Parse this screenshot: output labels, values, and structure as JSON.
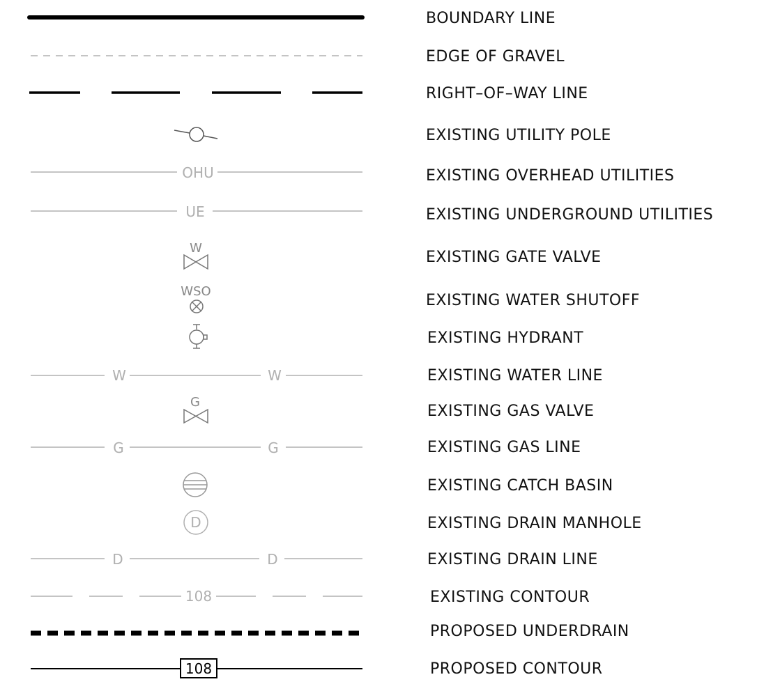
{
  "legend": {
    "labels": {
      "boundary_line": "BOUNDARY LINE",
      "edge_of_gravel": "EDGE OF GRAVEL",
      "right_of_way_line": "RIGHT–OF–WAY LINE",
      "existing_utility_pole": "EXISTING UTILITY POLE",
      "existing_overhead_utilities": "EXISTING OVERHEAD UTILITIES",
      "existing_underground_utilities": "EXISTING UNDERGROUND UTILITIES",
      "existing_gate_valve": "EXISTING GATE VALVE",
      "existing_water_shutoff": "EXISTING WATER SHUTOFF",
      "existing_hydrant": "EXISTING HYDRANT",
      "existing_water_line": "EXISTING WATER LINE",
      "existing_gas_valve": "EXISTING GAS VALVE",
      "existing_gas_line": "EXISTING GAS LINE",
      "existing_catch_basin": "EXISTING CATCH BASIN",
      "existing_drain_manhole": "EXISTING DRAIN MANHOLE",
      "existing_drain_line": "EXISTING DRAIN LINE",
      "existing_contour": "EXISTING CONTOUR",
      "proposed_underdrain": "PROPOSED UNDERDRAIN",
      "proposed_contour": "PROPOSED CONTOUR"
    },
    "symbol_text": {
      "ohu": "OHU",
      "ue": "UE",
      "gate_valve_letter": "W",
      "water_shutoff_letters": "WSO",
      "water_line_letter": "W",
      "gas_valve_letter": "G",
      "gas_line_letter": "G",
      "drain_manhole_letter": "D",
      "drain_line_letter": "D",
      "existing_contour_value": "108",
      "proposed_contour_value": "108"
    },
    "colors": {
      "black": "#000000",
      "existing_gray": "#b0b0b0",
      "label": "#111111"
    },
    "icons": {
      "utility_pole": "utility-pole-icon",
      "gate_valve": "gate-valve-icon",
      "water_shutoff": "water-shutoff-icon",
      "hydrant": "hydrant-icon",
      "gas_valve": "gas-valve-icon",
      "catch_basin": "catch-basin-icon",
      "drain_manhole": "drain-manhole-icon"
    }
  }
}
